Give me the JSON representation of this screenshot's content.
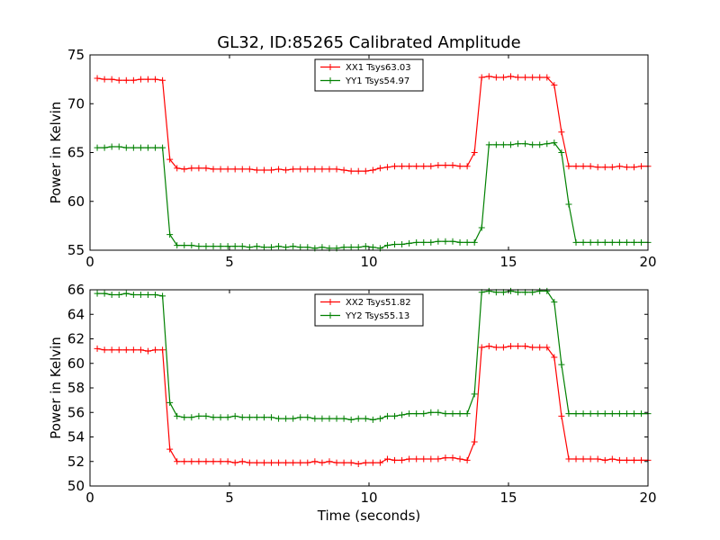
{
  "figure_title": "GL32, ID:85265 Calibrated Amplitude",
  "chart_data": [
    {
      "type": "line",
      "title": "GL32, ID:85265 Calibrated Amplitude",
      "xlabel": "",
      "ylabel": "Power in Kelvin",
      "xlim": [
        0,
        20
      ],
      "ylim": [
        55,
        75
      ],
      "xticks": [
        0,
        5,
        10,
        15,
        20
      ],
      "yticks": [
        55,
        60,
        65,
        70,
        75
      ],
      "xtick_labels": [
        "0",
        "5",
        "10",
        "15",
        "20"
      ],
      "ytick_labels": [
        "55",
        "60",
        "65",
        "70",
        "75"
      ],
      "legend_position": "top-center",
      "grid": false,
      "x": [
        0.26,
        0.52,
        0.78,
        1.04,
        1.3,
        1.56,
        1.82,
        2.08,
        2.34,
        2.6,
        2.86,
        3.12,
        3.38,
        3.64,
        3.9,
        4.16,
        4.42,
        4.68,
        4.94,
        5.2,
        5.46,
        5.72,
        5.98,
        6.24,
        6.5,
        6.76,
        7.02,
        7.28,
        7.54,
        7.8,
        8.06,
        8.32,
        8.58,
        8.84,
        9.1,
        9.36,
        9.62,
        9.88,
        10.14,
        10.4,
        10.66,
        10.92,
        11.18,
        11.44,
        11.7,
        11.96,
        12.22,
        12.48,
        12.74,
        13,
        13.26,
        13.52,
        13.78,
        14.04,
        14.3,
        14.56,
        14.82,
        15.08,
        15.34,
        15.6,
        15.86,
        16.12,
        16.38,
        16.64,
        16.9,
        17.16,
        17.42,
        17.68,
        17.94,
        18.2,
        18.46,
        18.72,
        18.98,
        19.24,
        19.5,
        19.76,
        20.0
      ],
      "series": [
        {
          "name": "XX1 Tsys63.03",
          "color": "#ff0000",
          "values": [
            72.6,
            72.5,
            72.5,
            72.4,
            72.4,
            72.4,
            72.5,
            72.5,
            72.5,
            72.4,
            64.3,
            63.4,
            63.3,
            63.4,
            63.4,
            63.4,
            63.3,
            63.3,
            63.3,
            63.3,
            63.3,
            63.3,
            63.2,
            63.2,
            63.2,
            63.3,
            63.2,
            63.3,
            63.3,
            63.3,
            63.3,
            63.3,
            63.3,
            63.3,
            63.2,
            63.1,
            63.1,
            63.1,
            63.2,
            63.4,
            63.5,
            63.6,
            63.6,
            63.6,
            63.6,
            63.6,
            63.6,
            63.7,
            63.7,
            63.7,
            63.6,
            63.6,
            65.0,
            72.7,
            72.8,
            72.7,
            72.7,
            72.8,
            72.7,
            72.7,
            72.7,
            72.7,
            72.7,
            71.9,
            67.1,
            63.6,
            63.6,
            63.6,
            63.6,
            63.5,
            63.5,
            63.5,
            63.6,
            63.5,
            63.5,
            63.6,
            63.6
          ]
        },
        {
          "name": "YY1 Tsys54.97",
          "color": "#008000",
          "values": [
            65.5,
            65.5,
            65.6,
            65.6,
            65.5,
            65.5,
            65.5,
            65.5,
            65.5,
            65.5,
            56.6,
            55.5,
            55.5,
            55.5,
            55.4,
            55.4,
            55.4,
            55.4,
            55.4,
            55.4,
            55.4,
            55.3,
            55.4,
            55.3,
            55.3,
            55.4,
            55.3,
            55.4,
            55.3,
            55.3,
            55.2,
            55.3,
            55.2,
            55.2,
            55.3,
            55.3,
            55.3,
            55.4,
            55.3,
            55.2,
            55.5,
            55.6,
            55.6,
            55.7,
            55.8,
            55.8,
            55.8,
            55.9,
            55.9,
            55.9,
            55.8,
            55.8,
            55.8,
            57.3,
            65.8,
            65.8,
            65.8,
            65.8,
            65.9,
            65.9,
            65.8,
            65.8,
            65.9,
            66.0,
            65.0,
            59.7,
            55.8,
            55.8,
            55.8,
            55.8,
            55.8,
            55.8,
            55.8,
            55.8,
            55.8,
            55.8,
            55.8
          ]
        }
      ]
    },
    {
      "type": "line",
      "title": "",
      "xlabel": "Time (seconds)",
      "ylabel": "Power in Kelvin",
      "xlim": [
        0,
        20
      ],
      "ylim": [
        50,
        66
      ],
      "xticks": [
        0,
        5,
        10,
        15,
        20
      ],
      "yticks": [
        50,
        52,
        54,
        56,
        58,
        60,
        62,
        64,
        66
      ],
      "xtick_labels": [
        "0",
        "5",
        "10",
        "15",
        "20"
      ],
      "ytick_labels": [
        "50",
        "52",
        "54",
        "56",
        "58",
        "60",
        "62",
        "64",
        "66"
      ],
      "legend_position": "top-center",
      "grid": false,
      "x": [
        0.26,
        0.52,
        0.78,
        1.04,
        1.3,
        1.56,
        1.82,
        2.08,
        2.34,
        2.6,
        2.86,
        3.12,
        3.38,
        3.64,
        3.9,
        4.16,
        4.42,
        4.68,
        4.94,
        5.2,
        5.46,
        5.72,
        5.98,
        6.24,
        6.5,
        6.76,
        7.02,
        7.28,
        7.54,
        7.8,
        8.06,
        8.32,
        8.58,
        8.84,
        9.1,
        9.36,
        9.62,
        9.88,
        10.14,
        10.4,
        10.66,
        10.92,
        11.18,
        11.44,
        11.7,
        11.96,
        12.22,
        12.48,
        12.74,
        13,
        13.26,
        13.52,
        13.78,
        14.04,
        14.3,
        14.56,
        14.82,
        15.08,
        15.34,
        15.6,
        15.86,
        16.12,
        16.38,
        16.64,
        16.9,
        17.16,
        17.42,
        17.68,
        17.94,
        18.2,
        18.46,
        18.72,
        18.98,
        19.24,
        19.5,
        19.76,
        20.0
      ],
      "series": [
        {
          "name": "XX2 Tsys51.82",
          "color": "#ff0000",
          "values": [
            61.2,
            61.1,
            61.1,
            61.1,
            61.1,
            61.1,
            61.1,
            61.0,
            61.1,
            61.1,
            53.0,
            52.0,
            52.0,
            52.0,
            52.0,
            52.0,
            52.0,
            52.0,
            52.0,
            51.9,
            52.0,
            51.9,
            51.9,
            51.9,
            51.9,
            51.9,
            51.9,
            51.9,
            51.9,
            51.9,
            52.0,
            51.9,
            52.0,
            51.9,
            51.9,
            51.9,
            51.8,
            51.9,
            51.9,
            51.9,
            52.2,
            52.1,
            52.1,
            52.2,
            52.2,
            52.2,
            52.2,
            52.2,
            52.3,
            52.3,
            52.2,
            52.1,
            53.6,
            61.3,
            61.4,
            61.3,
            61.3,
            61.4,
            61.4,
            61.4,
            61.3,
            61.3,
            61.3,
            60.5,
            55.7,
            52.2,
            52.2,
            52.2,
            52.2,
            52.2,
            52.1,
            52.2,
            52.1,
            52.1,
            52.1,
            52.1,
            52.1
          ]
        },
        {
          "name": "YY2 Tsys55.13",
          "color": "#008000",
          "values": [
            65.7,
            65.7,
            65.6,
            65.6,
            65.7,
            65.6,
            65.6,
            65.6,
            65.6,
            65.5,
            56.8,
            55.7,
            55.6,
            55.6,
            55.7,
            55.7,
            55.6,
            55.6,
            55.6,
            55.7,
            55.6,
            55.6,
            55.6,
            55.6,
            55.6,
            55.5,
            55.5,
            55.5,
            55.6,
            55.6,
            55.5,
            55.5,
            55.5,
            55.5,
            55.5,
            55.4,
            55.5,
            55.5,
            55.4,
            55.5,
            55.7,
            55.7,
            55.8,
            55.9,
            55.9,
            55.9,
            56.0,
            56.0,
            55.9,
            55.9,
            55.9,
            55.9,
            57.5,
            65.8,
            65.9,
            65.8,
            65.8,
            65.9,
            65.8,
            65.8,
            65.8,
            65.9,
            65.9,
            65.0,
            59.9,
            55.9,
            55.9,
            55.9,
            55.9,
            55.9,
            55.9,
            55.9,
            55.9,
            55.9,
            55.9,
            55.9,
            55.9
          ]
        }
      ]
    }
  ]
}
